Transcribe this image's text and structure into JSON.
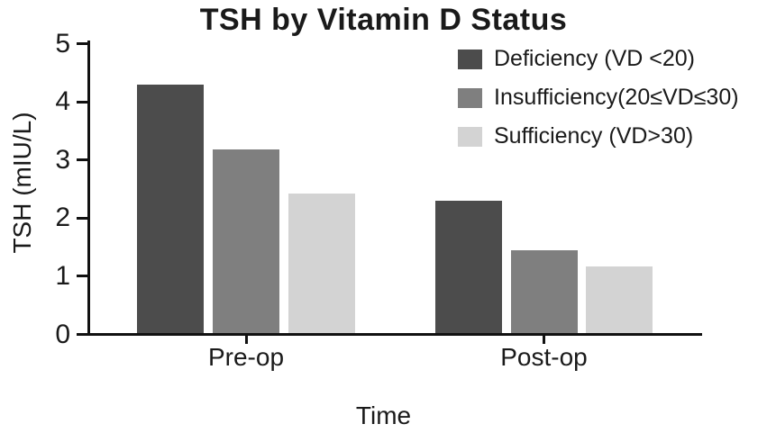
{
  "chart_data": {
    "type": "bar",
    "title": "TSH by Vitamin D Status",
    "xlabel": "Time",
    "ylabel": "TSH (mIU/L)",
    "categories": [
      "Pre-op",
      "Post-op"
    ],
    "series": [
      {
        "name": "Deficiency (VD <20)",
        "color": "#4c4c4c",
        "values": [
          4.28,
          2.27
        ]
      },
      {
        "name": "Insufficiency(20≤VD≤30)",
        "color": "#7f7f7f",
        "values": [
          3.16,
          1.43
        ]
      },
      {
        "name": "Sufficiency (VD>30)",
        "color": "#d3d3d3",
        "values": [
          2.4,
          1.15
        ]
      }
    ],
    "ylim": [
      0,
      5
    ],
    "yticks": [
      0,
      1,
      2,
      3,
      4,
      5
    ],
    "grid": false,
    "legend_position": "upper right",
    "background_color": "#ffffff",
    "axis_color": "#111111"
  }
}
